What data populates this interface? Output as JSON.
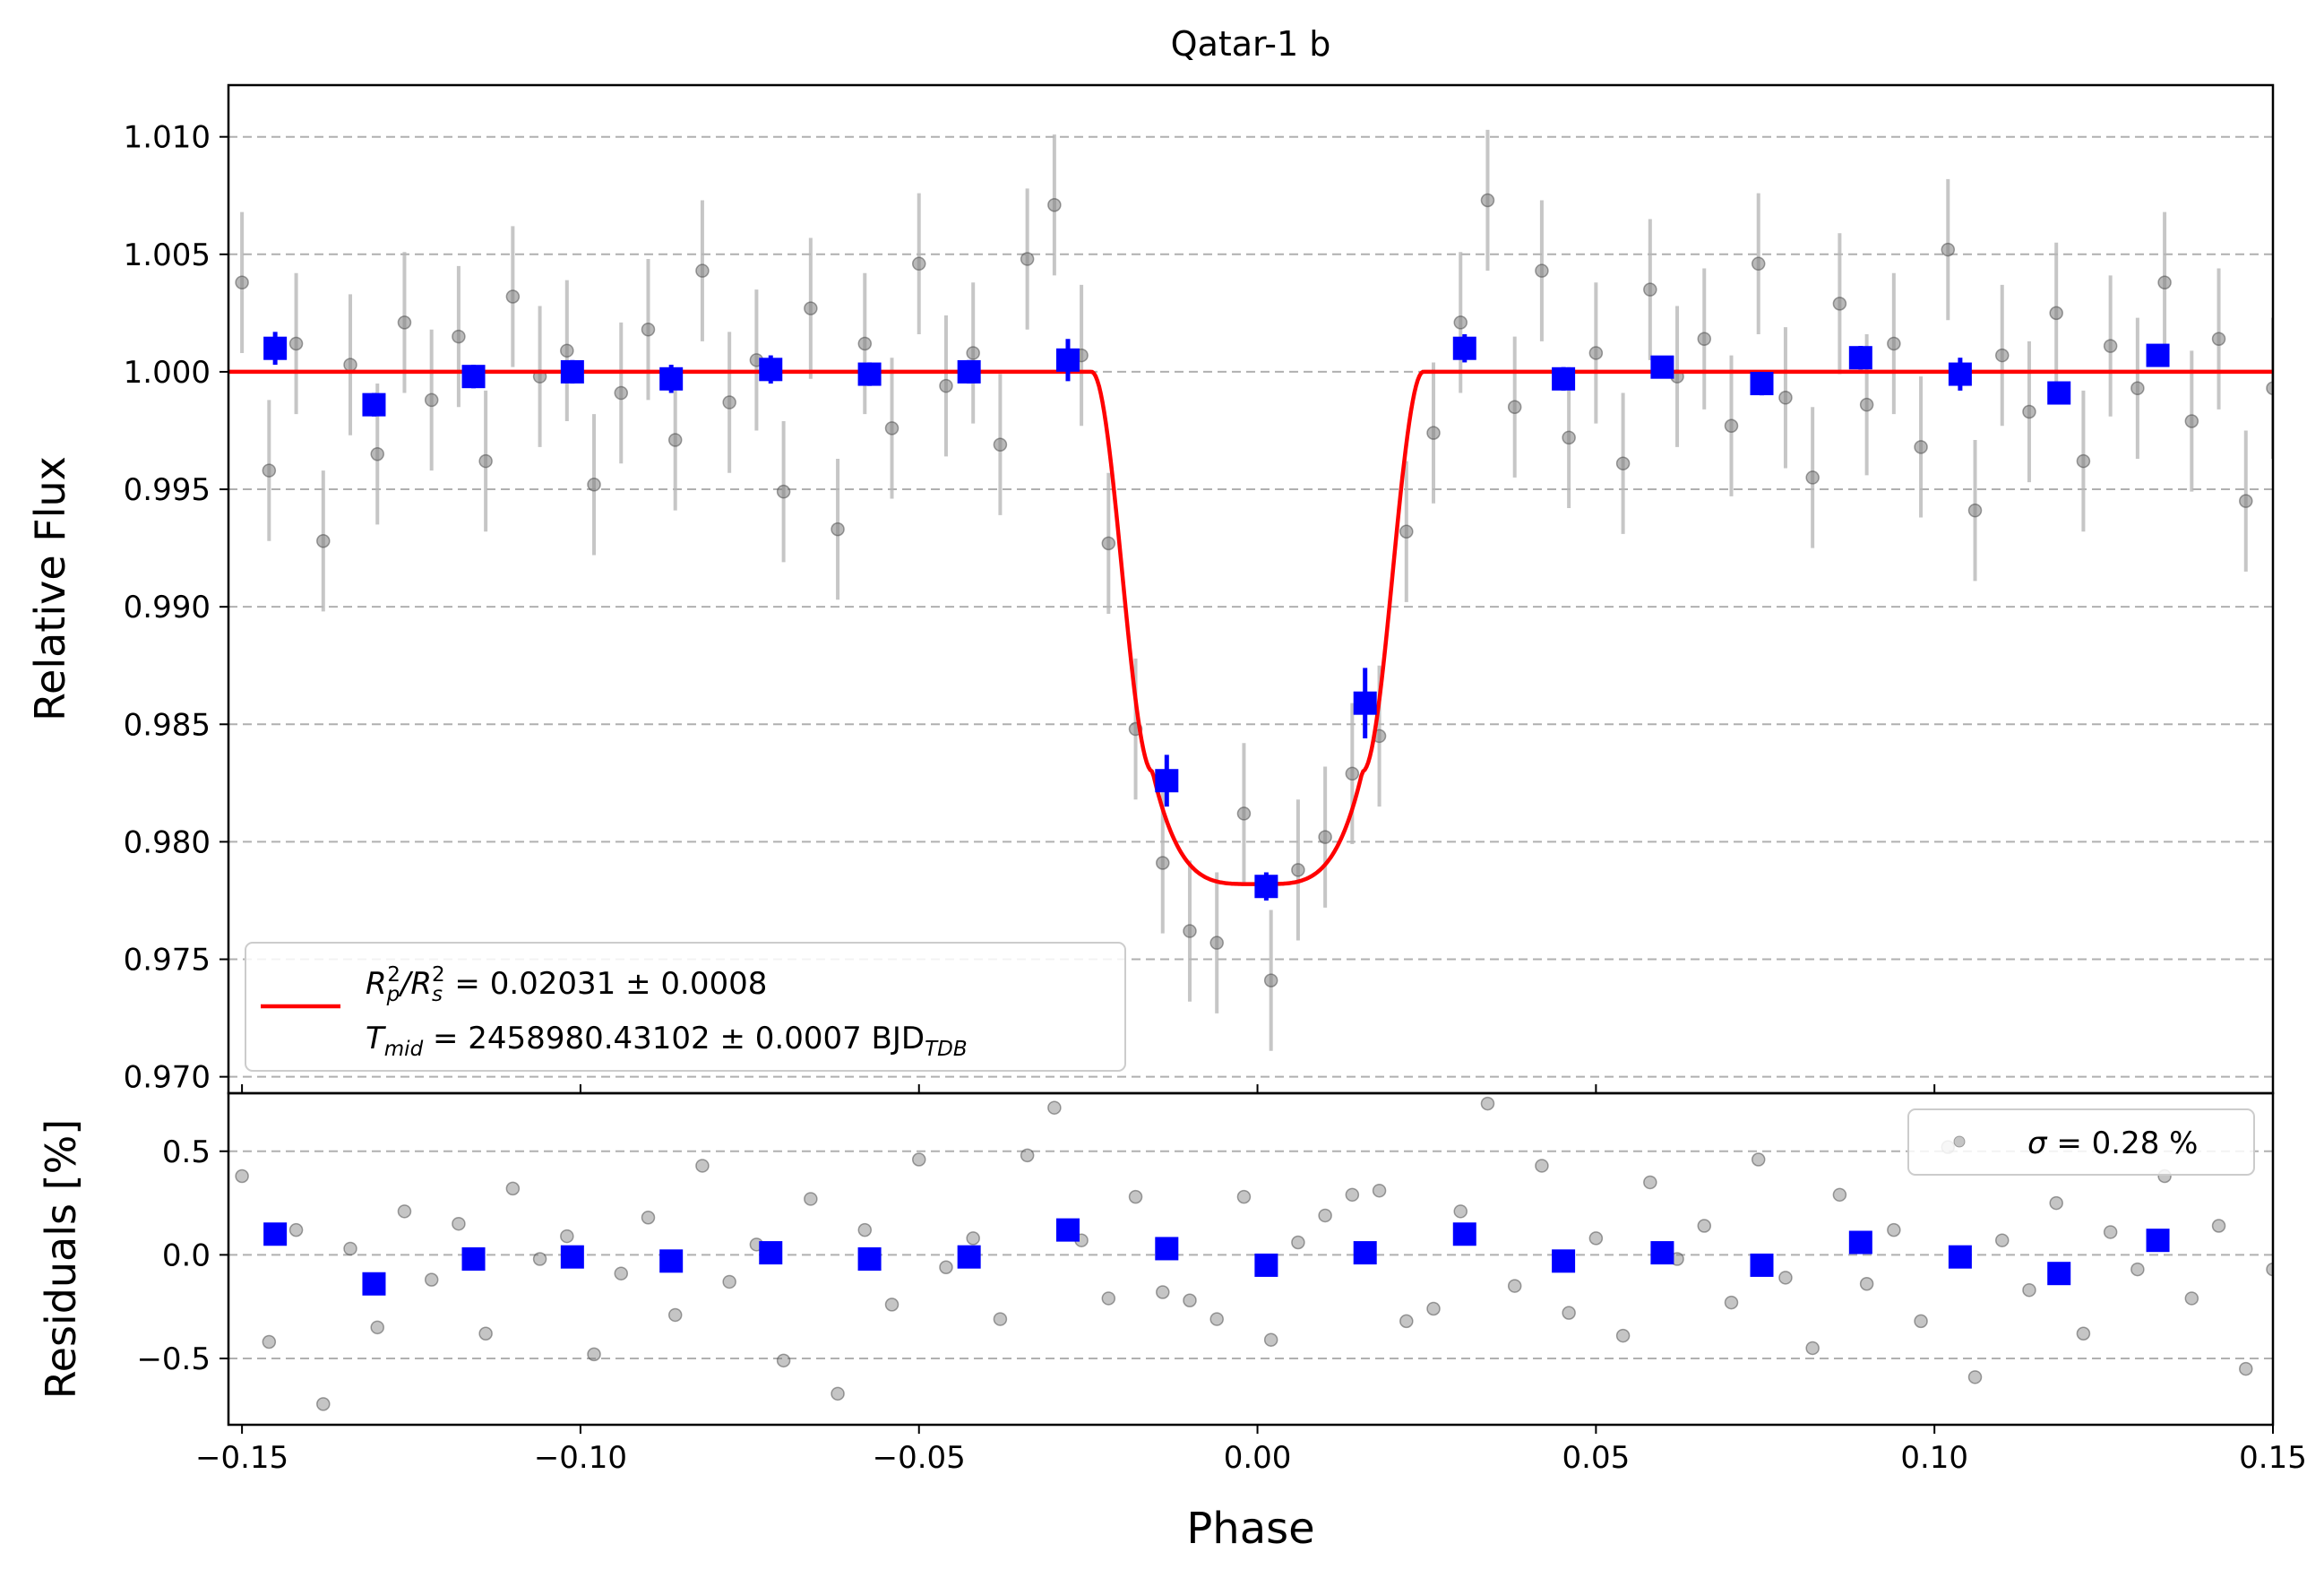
{
  "chart_data": [
    {
      "type": "scatter",
      "title": "Qatar-1 b",
      "xlabel": "",
      "ylabel": "Relative Flux",
      "xlim": [
        -0.152,
        0.15
      ],
      "ylim": [
        0.9693,
        1.0122
      ],
      "grid": "horizontal dashed",
      "legend_position": "lower-left",
      "xticks": [
        -0.15,
        -0.1,
        -0.05,
        0.0,
        0.05,
        0.1,
        0.15
      ],
      "yticks": [
        0.97,
        0.975,
        0.98,
        0.985,
        0.99,
        0.995,
        1.0,
        1.005,
        1.01
      ],
      "ytick_labels": [
        "0.970",
        "0.975",
        "0.980",
        "0.985",
        "0.990",
        "0.995",
        "1.000",
        "1.005",
        "1.010"
      ],
      "transit_model": {
        "color": "#ff0000",
        "baseline": 1.0,
        "depth_min": 0.9782,
        "t1": -0.0245,
        "t2": -0.0155,
        "t3": 0.0155,
        "t4": 0.0245
      },
      "legend": {
        "line1": {
          "prefix": "R",
          "sub1": "p",
          "sup1": "2",
          "mid": "/R",
          "sub2": "s",
          "sup2": "2",
          "rest": " = 0.02031 ± 0.0008"
        },
        "line2": {
          "prefix": "T",
          "sub1": "mid",
          "rest": " = 2458980.43102 ± 0.0007 BJD",
          "sub2": "TDB"
        }
      },
      "raw_color": "#7f7f7f",
      "binned_color": "#0000ff",
      "binned": {
        "x": [
          -0.1451,
          -0.1305,
          -0.1158,
          -0.1012,
          -0.0866,
          -0.0719,
          -0.0573,
          -0.0426,
          -0.028,
          -0.0134,
          0.0013,
          0.0159,
          0.0306,
          0.0452,
          0.0598,
          0.0745,
          0.0891,
          0.1038,
          0.1184,
          0.133
        ],
        "y": [
          1.001,
          0.9986,
          0.9998,
          1.0,
          0.9997,
          1.0001,
          0.9999,
          1.0,
          1.0005,
          0.9826,
          0.9781,
          0.9859,
          1.001,
          0.9997,
          1.0002,
          0.9995,
          1.0006,
          0.9999,
          0.9991,
          1.0007
        ],
        "err": [
          0.0007,
          0.0005,
          0.0005,
          0.0005,
          0.0006,
          0.0006,
          0.0005,
          0.0005,
          0.0009,
          0.0011,
          0.0006,
          0.0015,
          0.0006,
          0.0005,
          0.0004,
          0.0005,
          0.0005,
          0.0007,
          0.0004,
          0.0004
        ]
      },
      "raw_sample": {
        "x": [
          -0.15,
          -0.146,
          -0.142,
          -0.138,
          -0.134,
          -0.13,
          -0.126,
          -0.122,
          -0.118,
          -0.114,
          -0.11,
          -0.106,
          -0.102,
          -0.098,
          -0.094,
          -0.09,
          -0.086,
          -0.082,
          -0.078,
          -0.074,
          -0.07,
          -0.066,
          -0.062,
          -0.058,
          -0.054,
          -0.05,
          -0.046,
          -0.042,
          -0.038,
          -0.034,
          -0.03,
          -0.026,
          -0.022,
          -0.018,
          -0.014,
          -0.01,
          -0.006,
          -0.002,
          0.002,
          0.006,
          0.01,
          0.014,
          0.018,
          0.022,
          0.026,
          0.03,
          0.034,
          0.038,
          0.042,
          0.046,
          0.05,
          0.054,
          0.058,
          0.062,
          0.066,
          0.07,
          0.074,
          0.078,
          0.082,
          0.086,
          0.09,
          0.094,
          0.098,
          0.102,
          0.106,
          0.11,
          0.114,
          0.118,
          0.122,
          0.126,
          0.13,
          0.134,
          0.138,
          0.142,
          0.146,
          0.15
        ],
        "y": [
          1.0038,
          0.9958,
          1.0012,
          0.9928,
          1.0003,
          0.9965,
          1.0021,
          0.9988,
          1.0015,
          0.9962,
          1.0032,
          0.9998,
          1.0009,
          0.9952,
          0.9991,
          1.0018,
          0.9971,
          1.0043,
          0.9987,
          1.0005,
          0.9949,
          1.0027,
          0.9933,
          1.0012,
          0.9976,
          1.0046,
          0.9994,
          1.0008,
          0.9969,
          1.0048,
          1.0071,
          1.0007,
          0.9927,
          0.9848,
          0.9791,
          0.9762,
          0.9757,
          0.9812,
          0.9741,
          0.9788,
          0.9802,
          0.9829,
          0.9845,
          0.9932,
          0.9974,
          1.0021,
          1.0073,
          0.9985,
          1.0043,
          0.9972,
          1.0008,
          0.9961,
          1.0035,
          0.9998,
          1.0014,
          0.9977,
          1.0046,
          0.9989,
          0.9955,
          1.0029,
          0.9986,
          1.0012,
          0.9968,
          1.0052,
          0.9941,
          1.0007,
          0.9983,
          1.0025,
          0.9962,
          1.0011,
          0.9993,
          1.0038,
          0.9979,
          1.0014,
          0.9945,
          0.9993
        ],
        "err": [
          0.003,
          0.003,
          0.003,
          0.003,
          0.003,
          0.003,
          0.003,
          0.003,
          0.003,
          0.003,
          0.003,
          0.003,
          0.003,
          0.003,
          0.003,
          0.003,
          0.003,
          0.003,
          0.003,
          0.003,
          0.003,
          0.003,
          0.003,
          0.003,
          0.003,
          0.003,
          0.003,
          0.003,
          0.003,
          0.003,
          0.003,
          0.003,
          0.003,
          0.003,
          0.003,
          0.003,
          0.003,
          0.003,
          0.003,
          0.003,
          0.003,
          0.003,
          0.003,
          0.003,
          0.003,
          0.003,
          0.003,
          0.003,
          0.003,
          0.003,
          0.003,
          0.003,
          0.003,
          0.003,
          0.003,
          0.003,
          0.003,
          0.003,
          0.003,
          0.003,
          0.003,
          0.003,
          0.003,
          0.003,
          0.003,
          0.003,
          0.003,
          0.003,
          0.003,
          0.003,
          0.003,
          0.003,
          0.003,
          0.003,
          0.003,
          0.003
        ]
      }
    },
    {
      "type": "scatter",
      "title": "",
      "xlabel": "Phase",
      "ylabel": "Residuals [%]",
      "xlim": [
        -0.152,
        0.15
      ],
      "ylim": [
        -0.82,
        0.78
      ],
      "grid": "horizontal dashed",
      "legend_position": "top-right",
      "legend": {
        "symbol": "σ",
        "text": " = 0.28 %"
      },
      "xticks": [
        -0.15,
        -0.1,
        -0.05,
        0.0,
        0.05,
        0.1,
        0.15
      ],
      "xtick_labels": [
        "−0.15",
        "−0.10",
        "−0.05",
        "0.00",
        "0.05",
        "0.10",
        "0.15"
      ],
      "yticks": [
        -0.5,
        0.0,
        0.5
      ],
      "ytick_labels": [
        "−0.5",
        "0.0",
        "0.5"
      ],
      "binned": {
        "x": [
          -0.1451,
          -0.1305,
          -0.1158,
          -0.1012,
          -0.0866,
          -0.0719,
          -0.0573,
          -0.0426,
          -0.028,
          -0.0134,
          0.0013,
          0.0159,
          0.0306,
          0.0452,
          0.0598,
          0.0745,
          0.0891,
          0.1038,
          0.1184,
          0.133
        ],
        "y": [
          0.1,
          -0.14,
          -0.02,
          -0.01,
          -0.03,
          0.01,
          -0.02,
          -0.01,
          0.12,
          0.03,
          -0.05,
          0.01,
          0.1,
          -0.03,
          0.01,
          -0.05,
          0.06,
          -0.01,
          -0.09,
          0.07
        ]
      },
      "raw_sample": {
        "x": [
          -0.15,
          -0.146,
          -0.142,
          -0.138,
          -0.134,
          -0.13,
          -0.126,
          -0.122,
          -0.118,
          -0.114,
          -0.11,
          -0.106,
          -0.102,
          -0.098,
          -0.094,
          -0.09,
          -0.086,
          -0.082,
          -0.078,
          -0.074,
          -0.07,
          -0.066,
          -0.062,
          -0.058,
          -0.054,
          -0.05,
          -0.046,
          -0.042,
          -0.038,
          -0.034,
          -0.03,
          -0.026,
          -0.022,
          -0.018,
          -0.014,
          -0.01,
          -0.006,
          -0.002,
          0.002,
          0.006,
          0.01,
          0.014,
          0.018,
          0.022,
          0.026,
          0.03,
          0.034,
          0.038,
          0.042,
          0.046,
          0.05,
          0.054,
          0.058,
          0.062,
          0.066,
          0.07,
          0.074,
          0.078,
          0.082,
          0.086,
          0.09,
          0.094,
          0.098,
          0.102,
          0.106,
          0.11,
          0.114,
          0.118,
          0.122,
          0.126,
          0.13,
          0.134,
          0.138,
          0.142,
          0.146,
          0.15
        ],
        "y": [
          0.38,
          -0.42,
          0.12,
          -0.72,
          0.03,
          -0.35,
          0.21,
          -0.12,
          0.15,
          -0.38,
          0.32,
          -0.02,
          0.09,
          -0.48,
          -0.09,
          0.18,
          -0.29,
          0.43,
          -0.13,
          0.05,
          -0.51,
          0.27,
          -0.67,
          0.12,
          -0.24,
          0.46,
          -0.06,
          0.08,
          -0.31,
          0.48,
          0.71,
          0.07,
          -0.21,
          0.28,
          -0.18,
          -0.22,
          -0.31,
          0.28,
          -0.41,
          0.06,
          0.19,
          0.29,
          0.31,
          -0.32,
          -0.26,
          0.21,
          0.73,
          -0.15,
          0.43,
          -0.28,
          0.08,
          -0.39,
          0.35,
          -0.02,
          0.14,
          -0.23,
          0.46,
          -0.11,
          -0.45,
          0.29,
          -0.14,
          0.12,
          -0.32,
          0.52,
          -0.59,
          0.07,
          -0.17,
          0.25,
          -0.38,
          0.11,
          -0.07,
          0.38,
          -0.21,
          0.14,
          -0.55,
          -0.07
        ]
      }
    }
  ]
}
